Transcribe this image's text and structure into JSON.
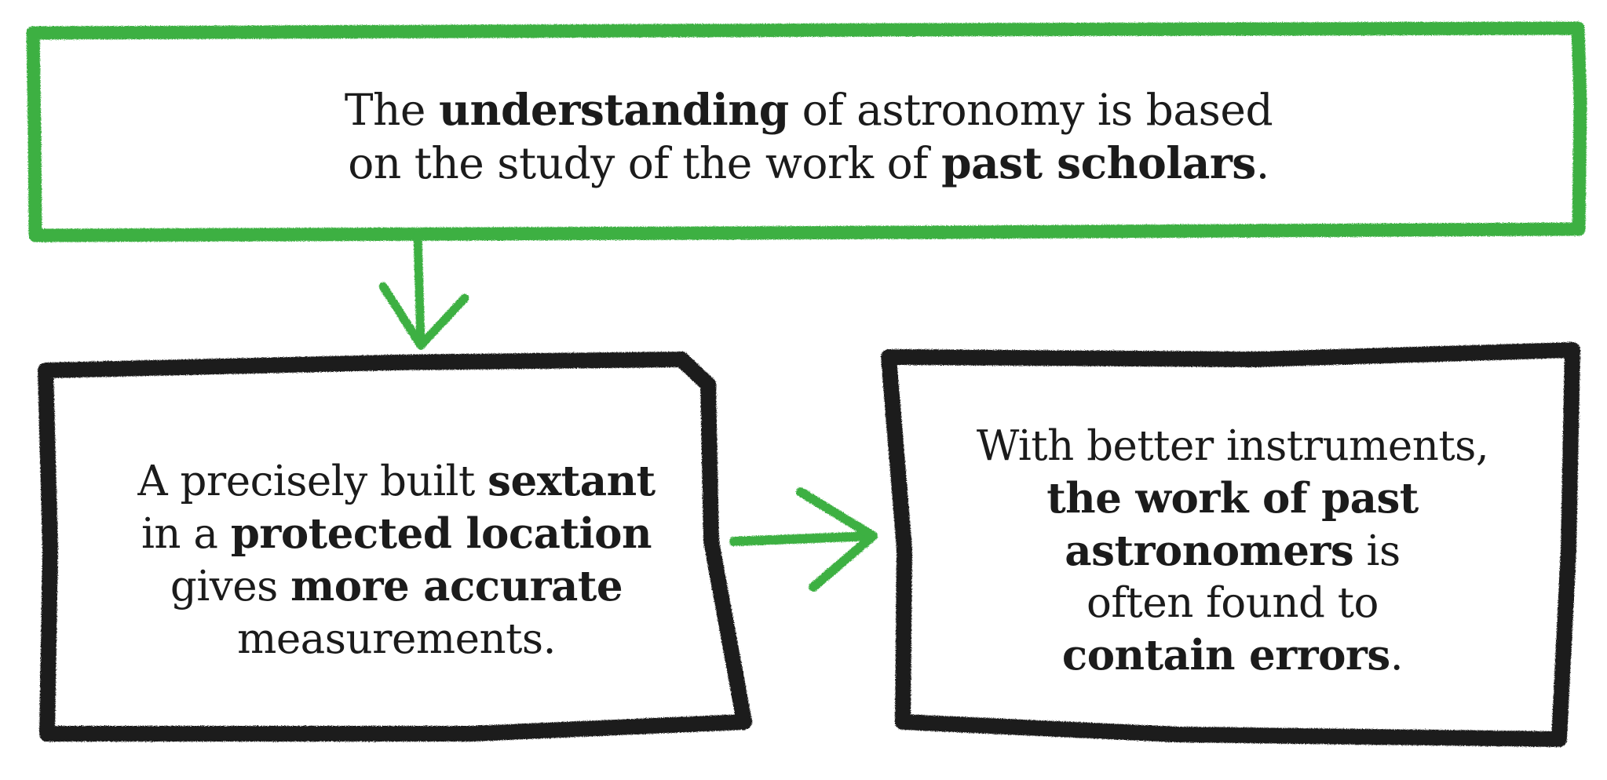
{
  "diagram": {
    "colors": {
      "top_box": "#3cb043",
      "bottom_boxes": "#1b1b1b",
      "arrows": "#3cb043",
      "text": "#1b1b1b",
      "background": "#ffffff"
    },
    "top_box": {
      "lines": [
        [
          {
            "text": "The ",
            "bold": false
          },
          {
            "text": "understanding",
            "bold": true
          },
          {
            "text": " of astronomy is based",
            "bold": false
          }
        ],
        [
          {
            "text": "on the study of the work of ",
            "bold": false
          },
          {
            "text": "past scholars",
            "bold": true
          },
          {
            "text": ".",
            "bold": false
          }
        ]
      ]
    },
    "left_box": {
      "lines": [
        [
          {
            "text": "A precisely built ",
            "bold": false
          },
          {
            "text": "sextant",
            "bold": true
          }
        ],
        [
          {
            "text": "in a ",
            "bold": false
          },
          {
            "text": "protected location",
            "bold": true
          }
        ],
        [
          {
            "text": "gives ",
            "bold": false
          },
          {
            "text": "more accurate",
            "bold": true
          }
        ],
        [
          {
            "text": "measurements.",
            "bold": false
          }
        ]
      ]
    },
    "right_box": {
      "lines": [
        [
          {
            "text": "With better instruments,",
            "bold": false
          }
        ],
        [
          {
            "text": "the work of past",
            "bold": true
          }
        ],
        [
          {
            "text": "astronomers",
            "bold": true
          },
          {
            "text": " is",
            "bold": false
          }
        ],
        [
          {
            "text": "often found to",
            "bold": false
          }
        ],
        [
          {
            "text": "contain errors",
            "bold": true
          },
          {
            "text": ".",
            "bold": false
          }
        ]
      ]
    }
  }
}
